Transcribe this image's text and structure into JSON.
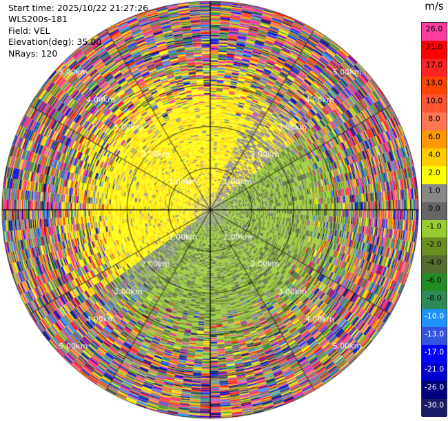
{
  "info": {
    "start_time": "Start time: 2025/10/22 21:27:26",
    "station": "WLS200s-181",
    "field": "Field: VEL",
    "elevation": "Elevation(deg): 35.00",
    "nrays": "NRays: 120"
  },
  "chart_data": {
    "type": "heatmap",
    "projection": "polar (PPI)",
    "range_rings_km": [
      1.0,
      2.0,
      3.0,
      4.0,
      5.0
    ],
    "range_labels": [
      "1.00km",
      "2.00km",
      "3.00km",
      "4.00km",
      "5.00km"
    ],
    "max_range_km": 5.0,
    "nrays": 120,
    "colorbar": {
      "unit": "m/s",
      "ticks": [
        "26.0",
        "21.0",
        "17.0",
        "13.0",
        "10.0",
        "8.0",
        "6.0",
        "4.0",
        "2.0",
        "1.0",
        "0.0",
        "-1.0",
        "-2.0",
        "-4.0",
        "-6.0",
        "-8.0",
        "-10.0",
        "-13.0",
        "-17.0",
        "-21.0",
        "-26.0",
        "-30.0"
      ],
      "colors": [
        "#ff3ca0",
        "#ff0000",
        "#ff2222",
        "#ff4400",
        "#ff5533",
        "#ff7755",
        "#ff9900",
        "#ffcc00",
        "#ffff00",
        "#888888",
        "#666666",
        "#99cc33",
        "#6b8e23",
        "#556b2f",
        "#228b22",
        "#2e8b57",
        "#1e90ff",
        "#3355dd",
        "#0000ff",
        "#0000cc",
        "#00007a",
        "#1a1a66"
      ]
    }
  }
}
